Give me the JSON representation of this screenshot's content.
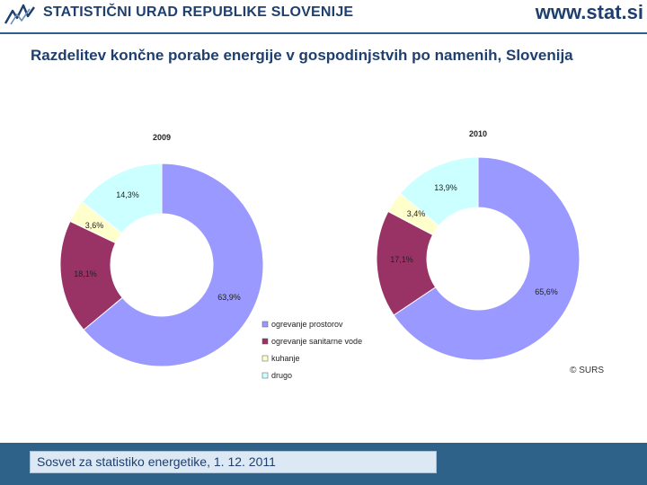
{
  "header": {
    "organization": "STATISTIČNI URAD REPUBLIKE SLOVENIJE",
    "website": "www.stat.si",
    "logo_icon": "surs-logo-icon"
  },
  "title": "Razdelitev končne porabe energije v gospodinjstvih po namenih, Slovenija",
  "chart_data": [
    {
      "type": "pie",
      "variant": "donut",
      "title": "2009",
      "categories": [
        "ogrevanje prostorov",
        "ogrevanje sanitarne vode",
        "kuhanje",
        "drugo"
      ],
      "values": [
        63.9,
        18.1,
        3.6,
        14.3
      ],
      "labels": [
        "63,9%",
        "18,1%",
        "3,6%",
        "14,3%"
      ]
    },
    {
      "type": "pie",
      "variant": "donut",
      "title": "2010",
      "categories": [
        "ogrevanje prostorov",
        "ogrevanje sanitarne vode",
        "kuhanje",
        "drugo"
      ],
      "values": [
        65.6,
        17.1,
        3.4,
        13.9
      ],
      "labels": [
        "65,6%",
        "17,1%",
        "3,4%",
        "13,9%"
      ]
    }
  ],
  "legend": {
    "placement": "bottom-center",
    "items": [
      {
        "label": "ogrevanje prostorov",
        "color": "#9999ff"
      },
      {
        "label": "ogrevanje sanitarne vode",
        "color": "#993366"
      },
      {
        "label": "kuhanje",
        "color": "#ffffcc"
      },
      {
        "label": "drugo",
        "color": "#ccffff"
      }
    ]
  },
  "credit": "© SURS",
  "footer": {
    "text": "Sosvet za statistiko energetike, 1. 12. 2011"
  },
  "colors": {
    "brand": "#1f3f6e",
    "footer_bar": "#2e6289",
    "footer_box": "#dce8f4"
  }
}
